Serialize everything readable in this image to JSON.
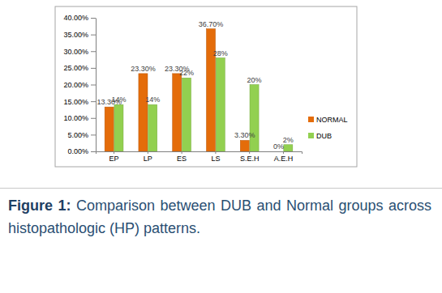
{
  "chart_data": {
    "type": "bar",
    "title": "Figure 1:",
    "subtitle": "Comparison between DUB and Normal groups across histopathologic (HP) patterns.",
    "categories": [
      "EP",
      "LP",
      "ES",
      "LS",
      "S.E.H",
      "A.E.H"
    ],
    "series": [
      {
        "name": "NORMAL",
        "color": "#e46c0a",
        "values": [
          13.3,
          23.3,
          23.3,
          36.7,
          3.3,
          0
        ],
        "value_labels": [
          "13.30%",
          "23.30%",
          "23.30%",
          "36.70%",
          "3.30%",
          "0%"
        ]
      },
      {
        "name": "DUB",
        "color": "#92d050",
        "values": [
          14,
          14,
          22,
          28,
          20,
          2
        ],
        "value_labels": [
          "14%",
          "14%",
          "22%",
          "28%",
          "20%",
          "2%"
        ]
      }
    ],
    "ylim": [
      0,
      40
    ],
    "yticks": [
      {
        "value": 0,
        "label": "0.00%"
      },
      {
        "value": 5,
        "label": "5.00%"
      },
      {
        "value": 10,
        "label": "10.00%"
      },
      {
        "value": 15,
        "label": "15.00%"
      },
      {
        "value": 20,
        "label": "20.00%"
      },
      {
        "value": 25,
        "label": "25.00%"
      },
      {
        "value": 30,
        "label": "30.00%"
      },
      {
        "value": 35,
        "label": "35.00%"
      },
      {
        "value": 40,
        "label": "40.00%"
      }
    ],
    "grid": false,
    "legend": "right",
    "data_labels": true
  }
}
